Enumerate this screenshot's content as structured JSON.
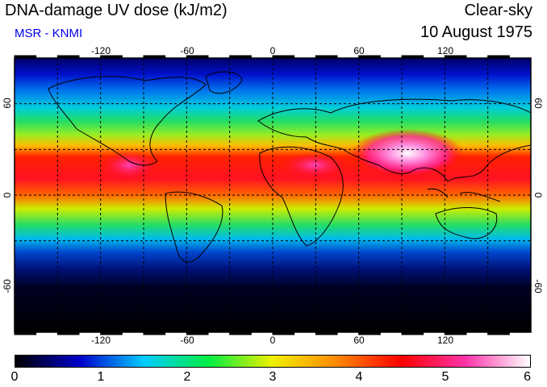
{
  "header": {
    "title": "DNA-damage UV dose (kJ/m2)",
    "subtitle": "MSR - KNMI",
    "mode": "Clear-sky",
    "date": "10 August 1975"
  },
  "map": {
    "projection": "equirectangular",
    "lon_range": [
      -180,
      180
    ],
    "lat_range": [
      -90,
      90
    ],
    "lon_ticks": [
      "-120",
      "-60",
      "0",
      "60",
      "120"
    ],
    "lat_ticks": [
      "60",
      "0",
      "-60"
    ],
    "gridlines": "dashed every 30 degrees"
  },
  "colorbar": {
    "range": [
      0,
      6
    ],
    "tick_labels": [
      "0",
      "1",
      "2",
      "3",
      "4",
      "5",
      "6"
    ],
    "colors": [
      "#000000",
      "#0000cc",
      "#00ccff",
      "#00ee44",
      "#f0f000",
      "#ff8800",
      "#ff0000",
      "#ff33aa",
      "#ffffff"
    ]
  }
}
